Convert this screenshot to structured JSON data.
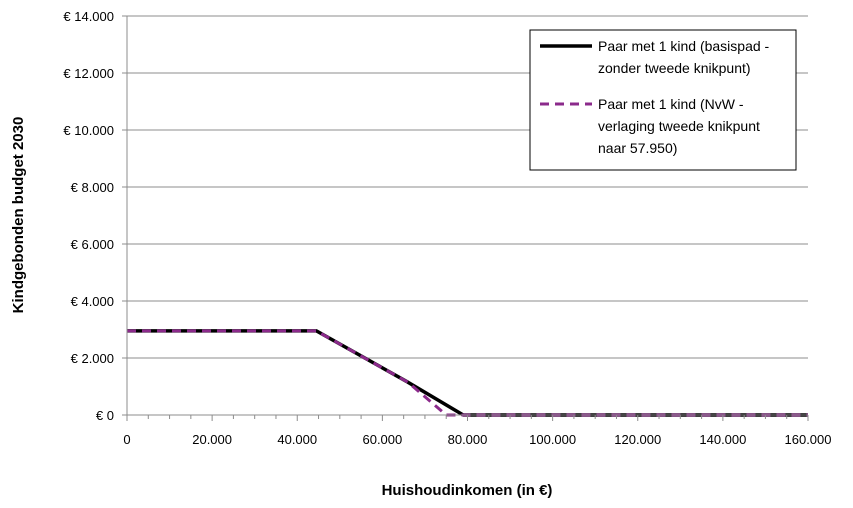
{
  "chart_data": {
    "type": "line",
    "title": "",
    "xlabel": "Huishoudinkomen (in €)",
    "ylabel": "Kindgebonden budget 2030",
    "xlim": [
      0,
      160000
    ],
    "ylim": [
      0,
      14000
    ],
    "x_ticks": [
      0,
      20000,
      40000,
      60000,
      80000,
      100000,
      120000,
      140000,
      160000
    ],
    "x_tick_labels": [
      "0",
      "20.000",
      "40.000",
      "60.000",
      "80.000",
      "100.000",
      "120.000",
      "140.000",
      "160.000"
    ],
    "y_ticks": [
      0,
      2000,
      4000,
      6000,
      8000,
      10000,
      12000,
      14000
    ],
    "y_tick_labels": [
      "€ 0",
      "€ 2.000",
      "€ 4.000",
      "€ 6.000",
      "€ 8.000",
      "€ 10.000",
      "€ 12.000",
      "€ 14.000"
    ],
    "grid": "horizontal",
    "legend_position": "top-right",
    "series": [
      {
        "name": "Paar met 1 kind (basispad - zonder tweede knikpunt)",
        "legend_lines": [
          "Paar met 1 kind (basispad -",
          "zonder tweede knikpunt)"
        ],
        "color": "#000000",
        "style": "solid",
        "x": [
          0,
          44500,
          66000,
          79000,
          160000
        ],
        "y": [
          2950,
          2950,
          1150,
          0,
          0
        ]
      },
      {
        "name": "Paar met 1 kind (NvW - verlaging tweede knikpunt naar 57.950)",
        "legend_lines": [
          "Paar met 1 kind (NvW -",
          "verlaging tweede knikpunt",
          "naar 57.950)"
        ],
        "color": "#8B2A8B",
        "style": "dashed",
        "x": [
          0,
          44500,
          66000,
          75000,
          160000
        ],
        "y": [
          2950,
          2950,
          1150,
          0,
          0
        ]
      }
    ]
  }
}
